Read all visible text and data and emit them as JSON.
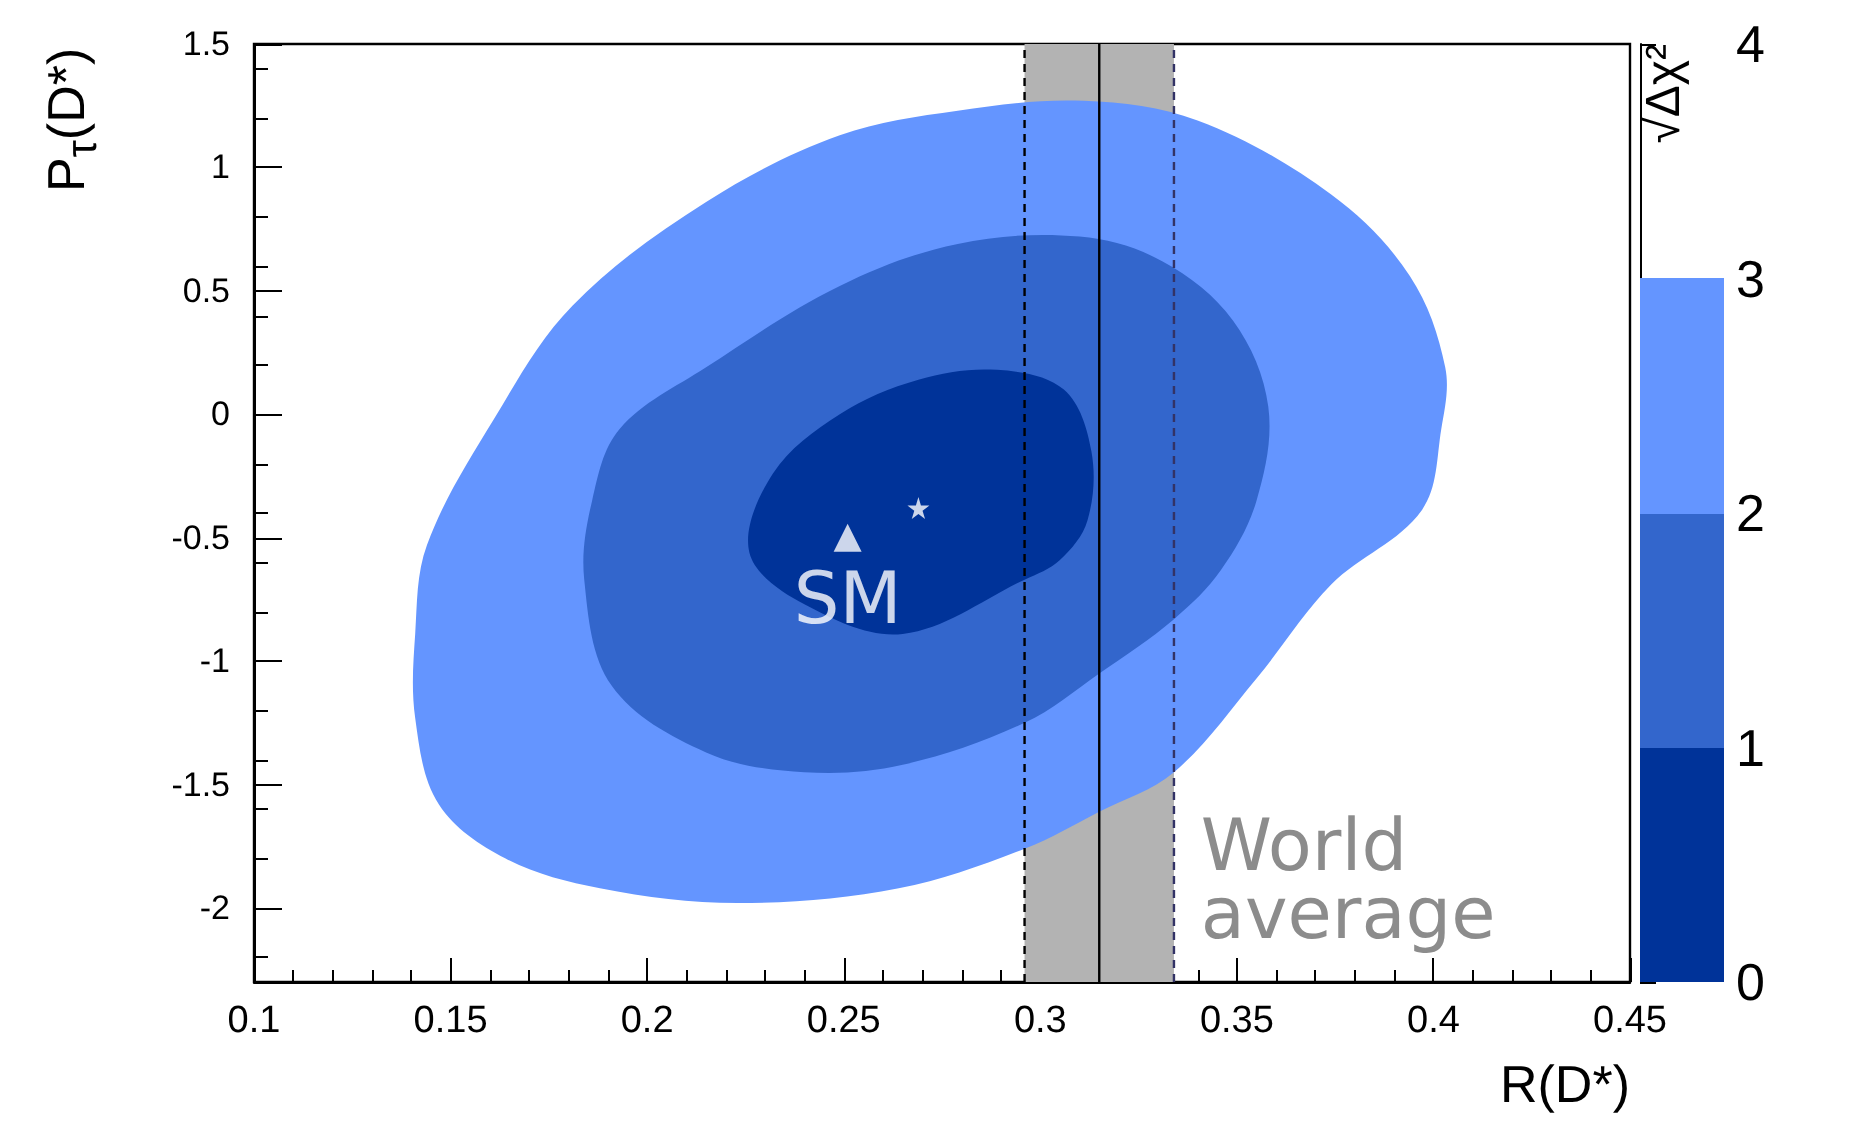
{
  "chart_data": {
    "type": "area",
    "xlabel": "R(D*)",
    "ylabel": "P$_{τ}$(D*)",
    "clabel": "√Δχ²",
    "xlim": [
      0.1,
      0.45
    ],
    "xticks": [
      0.1,
      0.15,
      0.2,
      0.25,
      0.3,
      0.35,
      0.4,
      0.45
    ],
    "ylim": [
      -2.3,
      1.5
    ],
    "yticks": [
      -2,
      -1.5,
      -1,
      -0.5,
      0,
      0.5,
      1,
      1.5
    ],
    "clim": [
      0,
      4
    ],
    "cticks": [
      0,
      1,
      2,
      3,
      4
    ],
    "grid": false,
    "series": [
      {
        "color": "#003399",
        "x": [
          0.289,
          0.306,
          0.313,
          0.312,
          0.305,
          0.296,
          0.265,
          0.24,
          0.226,
          0.232,
          0.249,
          0.269
        ],
        "values": [
          0.18,
          0.1,
          -0.15,
          -0.43,
          -0.59,
          -0.67,
          -0.89,
          -0.77,
          -0.56,
          -0.24,
          0.0,
          0.14
        ]
      },
      {
        "color": "#3366cc",
        "x": [
          0.31,
          0.331,
          0.349,
          0.358,
          0.355,
          0.346,
          0.334,
          0.315,
          0.296,
          0.265,
          0.24,
          0.215,
          0.191,
          0.184,
          0.186,
          0.193,
          0.215,
          0.249,
          0.279
        ],
        "values": [
          0.72,
          0.62,
          0.38,
          0.03,
          -0.35,
          -0.63,
          -0.83,
          -1.05,
          -1.25,
          -1.42,
          -1.45,
          -1.37,
          -1.1,
          -0.67,
          -0.35,
          -0.06,
          0.19,
          0.52,
          0.69
        ]
      },
      {
        "color": "#6495ff",
        "x": [
          0.311,
          0.34,
          0.374,
          0.394,
          0.403,
          0.402,
          0.397,
          0.374,
          0.355,
          0.334,
          0.315,
          0.296,
          0.264,
          0.223,
          0.188,
          0.164,
          0.147,
          0.141,
          0.141,
          0.144,
          0.161,
          0.181,
          0.215,
          0.249,
          0.279
        ],
        "values": [
          1.27,
          1.19,
          0.89,
          0.56,
          0.19,
          -0.06,
          -0.39,
          -0.69,
          -1.07,
          -1.45,
          -1.61,
          -1.76,
          -1.92,
          -1.98,
          -1.92,
          -1.8,
          -1.58,
          -1.23,
          -0.89,
          -0.53,
          -0.02,
          0.44,
          0.86,
          1.13,
          1.23
        ]
      },
      {
        "type": "scatter",
        "name": "SM",
        "color": "#ffffff",
        "marker": "triangle",
        "x": [
          0.251
        ],
        "values": [
          -0.5
        ]
      },
      {
        "type": "scatter",
        "color": "#ffffff",
        "marker": "star",
        "x": [
          0.269
        ],
        "values": [
          -0.38
        ]
      }
    ],
    "ref_lines": [
      {
        "axis": "x",
        "value": 0.315,
        "line_style": "solid",
        "color": "#000000"
      },
      {
        "axis": "x",
        "value": 0.296,
        "line_style": "dashed",
        "color": "#000000"
      },
      {
        "axis": "x",
        "value": 0.334,
        "line_style": "dashed",
        "color": "#333366"
      }
    ],
    "bands": [
      {
        "axis": "x",
        "from": 0.296,
        "to": 0.334,
        "label": "World average",
        "color": "#b3b3b3"
      }
    ]
  }
}
